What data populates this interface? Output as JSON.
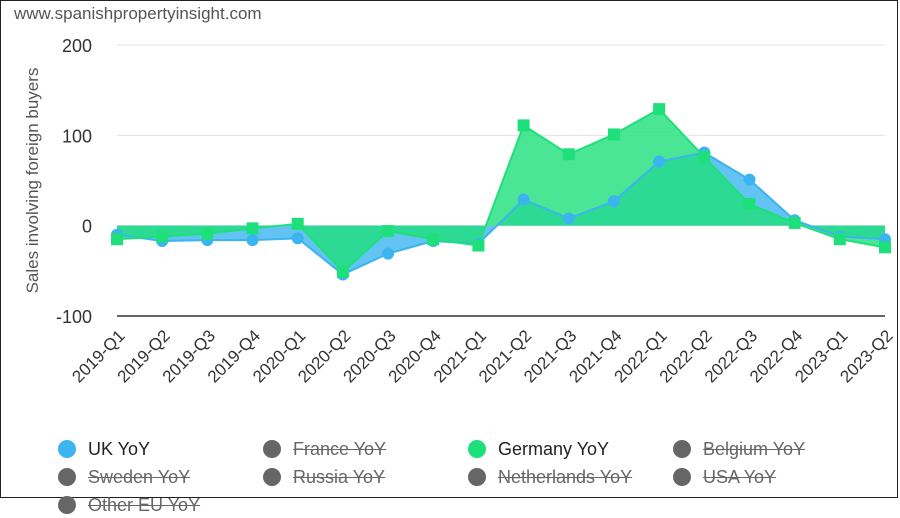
{
  "watermark": "www.spanishpropertyinsight.com",
  "chart_data": {
    "type": "area",
    "ylabel": "Sales involving foreign buyers",
    "xlabel": "",
    "ylim": [
      -100,
      200
    ],
    "yticks": [
      -100,
      0,
      100,
      200
    ],
    "grid": true,
    "legend_position": "bottom",
    "categories": [
      "2019-Q1",
      "2019-Q2",
      "2019-Q3",
      "2019-Q4",
      "2020-Q1",
      "2020-Q2",
      "2020-Q3",
      "2020-Q4",
      "2021-Q1",
      "2021-Q2",
      "2021-Q3",
      "2021-Q4",
      "2022-Q1",
      "2022-Q2",
      "2022-Q3",
      "2022-Q4",
      "2023-Q1",
      "2023-Q2"
    ],
    "series": [
      {
        "name": "UK YoY",
        "color": "#3cb4f0",
        "marker": "circle",
        "visible": true,
        "values": [
          -10,
          -17,
          -16,
          -16,
          -14,
          -54,
          -31,
          -17,
          -20,
          29,
          8,
          27,
          71,
          81,
          51,
          6,
          -12,
          -15
        ]
      },
      {
        "name": "Germany YoY",
        "color": "#1ee07a",
        "marker": "square",
        "visible": true,
        "values": [
          -15,
          -12,
          -9,
          -3,
          2,
          -51,
          -6,
          -15,
          -22,
          111,
          79,
          101,
          129,
          76,
          24,
          3,
          -15,
          -24
        ]
      }
    ],
    "legend": [
      {
        "name": "UK YoY",
        "color": "#3cb4f0",
        "visible": true
      },
      {
        "name": "France YoY",
        "color": "#666666",
        "visible": false
      },
      {
        "name": "Germany YoY",
        "color": "#1ee07a",
        "visible": true
      },
      {
        "name": "Belgium YoY",
        "color": "#666666",
        "visible": false
      },
      {
        "name": "Sweden YoY",
        "color": "#666666",
        "visible": false
      },
      {
        "name": "Russia YoY",
        "color": "#666666",
        "visible": false
      },
      {
        "name": "Netherlands YoY",
        "color": "#666666",
        "visible": false
      },
      {
        "name": "USA YoY",
        "color": "#666666",
        "visible": false
      },
      {
        "name": "Other EU YoY",
        "color": "#666666",
        "visible": false
      }
    ]
  }
}
